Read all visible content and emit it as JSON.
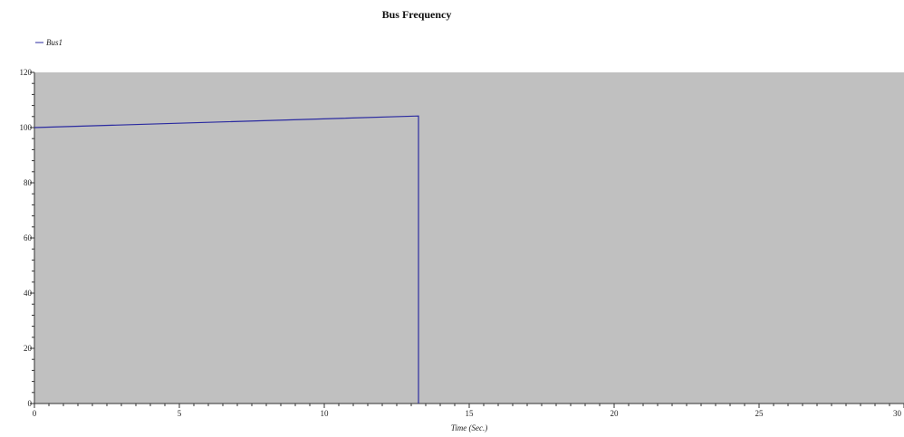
{
  "chart_data": {
    "type": "line",
    "title": "Bus Frequency",
    "xlabel": "Time (Sec.)",
    "ylabel": "",
    "xlim": [
      0,
      30
    ],
    "ylim": [
      0,
      120
    ],
    "xticks": [
      0,
      5,
      10,
      15,
      20,
      25,
      30
    ],
    "yticks": [
      0,
      20,
      40,
      60,
      80,
      100,
      120
    ],
    "grid": false,
    "legend": "top-left",
    "background_color": "#c0c0c0",
    "series": [
      {
        "name": "Bus1",
        "color": "#2a2aa0",
        "x": [
          0,
          13.25,
          13.25
        ],
        "y": [
          100,
          104.2,
          0
        ]
      }
    ]
  }
}
